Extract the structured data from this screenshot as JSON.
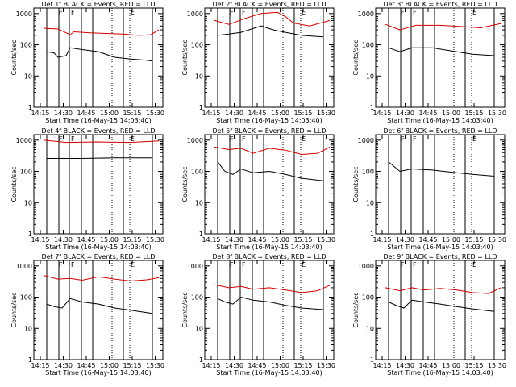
{
  "chart_data": {
    "type": "line",
    "shared": {
      "ylabel": "Counts/sec",
      "xlabel": "Start Time (16-May-15 14:03:40)",
      "xticks": [
        "14:15",
        "14:30",
        "14:45",
        "15:00",
        "15:15",
        "15:30"
      ],
      "yticks": [
        "1",
        "10",
        "100",
        "1000"
      ],
      "ylim": [
        1,
        1500
      ],
      "log_y": true,
      "series_colors": {
        "events": "#000000",
        "lld": "#d00000"
      }
    },
    "panels": [
      {
        "title": "Det 1f BLACK = Events, RED = LLD",
        "markers": [
          {
            "label": "F",
            "t": 30
          },
          {
            "label": "F",
            "t": 45
          },
          {
            "label": "E",
            "t": 119
          }
        ],
        "lines": [
          16,
          31,
          44,
          59,
          73,
          111,
          147
        ],
        "dotted": [
          97,
          119
        ],
        "lld": [
          [
            12,
            340
          ],
          [
            30,
            320
          ],
          [
            45,
            210
          ],
          [
            50,
            260
          ],
          [
            70,
            240
          ],
          [
            90,
            230
          ],
          [
            110,
            220
          ],
          [
            130,
            200
          ],
          [
            145,
            210
          ],
          [
            155,
            300
          ]
        ],
        "events": [
          [
            16,
            60
          ],
          [
            25,
            55
          ],
          [
            30,
            40
          ],
          [
            40,
            45
          ],
          [
            45,
            80
          ],
          [
            60,
            70
          ],
          [
            80,
            60
          ],
          [
            100,
            40
          ],
          [
            120,
            35
          ],
          [
            140,
            32
          ],
          [
            147,
            30
          ]
        ],
        "drops": [
          [
            16,
            5
          ],
          [
            147,
            2
          ]
        ]
      },
      {
        "title": "Det 2f BLACK = Events, RED = LLD",
        "markers": [
          {
            "label": "F",
            "t": 30
          },
          {
            "label": "F",
            "t": 45
          },
          {
            "label": "E",
            "t": 119
          }
        ],
        "lines": [
          16,
          31,
          44,
          59,
          73,
          111,
          147
        ],
        "dotted": [
          97,
          119
        ],
        "lld": [
          [
            12,
            600
          ],
          [
            30,
            450
          ],
          [
            50,
            700
          ],
          [
            70,
            1000
          ],
          [
            90,
            1100
          ],
          [
            100,
            800
          ],
          [
            110,
            500
          ],
          [
            130,
            400
          ],
          [
            155,
            600
          ]
        ],
        "events": [
          [
            16,
            200
          ],
          [
            30,
            220
          ],
          [
            45,
            250
          ],
          [
            70,
            400
          ],
          [
            85,
            300
          ],
          [
            100,
            250
          ],
          [
            120,
            200
          ],
          [
            147,
            180
          ]
        ],
        "drops": [
          [
            16,
            20
          ],
          [
            147,
            20
          ]
        ]
      },
      {
        "title": "Det 3f BLACK = Events, RED = LLD",
        "markers": [
          {
            "label": "F",
            "t": 30
          },
          {
            "label": "F",
            "t": 45
          },
          {
            "label": "E",
            "t": 119
          }
        ],
        "lines": [
          16,
          31,
          44,
          59,
          73,
          111,
          147
        ],
        "dotted": [
          97,
          119
        ],
        "lld": [
          [
            12,
            450
          ],
          [
            30,
            300
          ],
          [
            50,
            420
          ],
          [
            80,
            420
          ],
          [
            110,
            380
          ],
          [
            130,
            350
          ],
          [
            155,
            480
          ]
        ],
        "events": [
          [
            16,
            80
          ],
          [
            30,
            60
          ],
          [
            45,
            80
          ],
          [
            70,
            80
          ],
          [
            100,
            60
          ],
          [
            120,
            50
          ],
          [
            147,
            45
          ]
        ],
        "drops": [
          [
            16,
            10
          ],
          [
            147,
            10
          ]
        ]
      },
      {
        "title": "Det 4f BLACK = Events, RED = LLD",
        "markers": [
          {
            "label": "F",
            "t": 30
          },
          {
            "label": "F",
            "t": 45
          },
          {
            "label": "E",
            "t": 119
          }
        ],
        "lines": [
          16,
          31,
          44,
          59,
          73,
          111,
          147
        ],
        "dotted": [
          97,
          119
        ],
        "lld": [
          [
            12,
            1000
          ],
          [
            40,
            850
          ],
          [
            80,
            880
          ],
          [
            120,
            850
          ],
          [
            155,
            950
          ]
        ],
        "events": [
          [
            16,
            260
          ],
          [
            60,
            260
          ],
          [
            100,
            270
          ],
          [
            147,
            270
          ]
        ],
        "drops": [
          [
            16,
            8
          ],
          [
            147,
            8
          ]
        ]
      },
      {
        "title": "Det 5f BLACK = Events, RED = LLD",
        "markers": [
          {
            "label": "F",
            "t": 30
          },
          {
            "label": "F",
            "t": 45
          },
          {
            "label": "E",
            "t": 119
          }
        ],
        "lines": [
          16,
          31,
          44,
          59,
          73,
          111,
          147
        ],
        "dotted": [
          97,
          119
        ],
        "lld": [
          [
            12,
            600
          ],
          [
            30,
            500
          ],
          [
            45,
            550
          ],
          [
            60,
            380
          ],
          [
            80,
            550
          ],
          [
            100,
            480
          ],
          [
            120,
            350
          ],
          [
            140,
            380
          ],
          [
            155,
            600
          ]
        ],
        "events": [
          [
            16,
            200
          ],
          [
            25,
            100
          ],
          [
            35,
            80
          ],
          [
            45,
            120
          ],
          [
            60,
            90
          ],
          [
            80,
            100
          ],
          [
            100,
            80
          ],
          [
            120,
            60
          ],
          [
            147,
            50
          ]
        ],
        "drops": [
          [
            16,
            10
          ],
          [
            147,
            5
          ]
        ]
      },
      {
        "title": "Det 6f BLACK = Events, RED = LLD",
        "markers": [
          {
            "label": "F",
            "t": 30
          },
          {
            "label": "F",
            "t": 45
          },
          {
            "label": "E",
            "t": 119
          }
        ],
        "lines": [
          16,
          31,
          44,
          59,
          73,
          111,
          147
        ],
        "dotted": [
          97,
          119
        ],
        "lld": [],
        "events": [
          [
            16,
            200
          ],
          [
            30,
            100
          ],
          [
            45,
            120
          ],
          [
            70,
            110
          ],
          [
            100,
            90
          ],
          [
            120,
            80
          ],
          [
            147,
            70
          ]
        ],
        "drops": [
          [
            16,
            10
          ],
          [
            147,
            10
          ]
        ]
      },
      {
        "title": "Det 7f BLACK = Events, RED = LLD",
        "markers": [
          {
            "label": "F",
            "t": 30
          },
          {
            "label": "F",
            "t": 45
          },
          {
            "label": "E",
            "t": 119
          }
        ],
        "lines": [
          16,
          31,
          44,
          59,
          73,
          111,
          147
        ],
        "dotted": [
          97,
          119
        ],
        "lld": [
          [
            12,
            500
          ],
          [
            30,
            380
          ],
          [
            45,
            400
          ],
          [
            60,
            350
          ],
          [
            80,
            450
          ],
          [
            100,
            380
          ],
          [
            120,
            330
          ],
          [
            140,
            360
          ],
          [
            155,
            420
          ]
        ],
        "events": [
          [
            16,
            60
          ],
          [
            25,
            50
          ],
          [
            35,
            45
          ],
          [
            45,
            90
          ],
          [
            60,
            70
          ],
          [
            80,
            60
          ],
          [
            100,
            45
          ],
          [
            120,
            38
          ],
          [
            147,
            30
          ]
        ],
        "drops": [
          [
            16,
            5
          ],
          [
            147,
            3
          ]
        ]
      },
      {
        "title": "Det 8f BLACK = Events, RED = LLD",
        "markers": [
          {
            "label": "F",
            "t": 30
          },
          {
            "label": "F",
            "t": 45
          },
          {
            "label": "E",
            "t": 119
          }
        ],
        "lines": [
          16,
          31,
          44,
          59,
          73,
          111,
          147
        ],
        "dotted": [
          97,
          119
        ],
        "lld": [
          [
            12,
            250
          ],
          [
            30,
            200
          ],
          [
            45,
            220
          ],
          [
            60,
            180
          ],
          [
            80,
            200
          ],
          [
            100,
            170
          ],
          [
            120,
            140
          ],
          [
            140,
            160
          ],
          [
            155,
            240
          ]
        ],
        "events": [
          [
            16,
            90
          ],
          [
            25,
            70
          ],
          [
            35,
            60
          ],
          [
            45,
            100
          ],
          [
            60,
            80
          ],
          [
            80,
            70
          ],
          [
            100,
            55
          ],
          [
            120,
            45
          ],
          [
            147,
            40
          ]
        ],
        "drops": [
          [
            16,
            6
          ],
          [
            147,
            2
          ]
        ]
      },
      {
        "title": "Det 9f BLACK = Events, RED = LLD",
        "markers": [
          {
            "label": "F",
            "t": 30
          },
          {
            "label": "F",
            "t": 45
          },
          {
            "label": "E",
            "t": 119
          }
        ],
        "lines": [
          16,
          31,
          44,
          59,
          73,
          111,
          147
        ],
        "dotted": [
          97,
          119
        ],
        "lld": [
          [
            12,
            200
          ],
          [
            30,
            160
          ],
          [
            45,
            200
          ],
          [
            60,
            170
          ],
          [
            80,
            190
          ],
          [
            100,
            170
          ],
          [
            120,
            140
          ],
          [
            140,
            130
          ],
          [
            155,
            200
          ]
        ],
        "events": [
          [
            16,
            70
          ],
          [
            25,
            55
          ],
          [
            35,
            45
          ],
          [
            45,
            80
          ],
          [
            60,
            70
          ],
          [
            80,
            60
          ],
          [
            100,
            50
          ],
          [
            120,
            42
          ],
          [
            147,
            35
          ]
        ],
        "drops": [
          [
            16,
            5
          ],
          [
            147,
            5
          ]
        ]
      }
    ]
  }
}
